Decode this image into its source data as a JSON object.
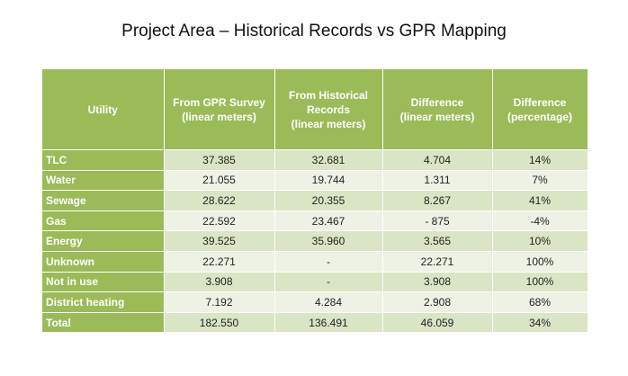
{
  "title": "Project  Area – Historical Records vs GPR Mapping",
  "table": {
    "header": [
      [
        "Utility"
      ],
      [
        "From GPR Survey",
        "(linear meters)"
      ],
      [
        "From Historical",
        "Records",
        "(linear meters)"
      ],
      [
        "Difference",
        "(linear meters)"
      ],
      [
        "Difference",
        "(percentage)"
      ]
    ],
    "rows": [
      [
        "TLC",
        "37.385",
        "32.681",
        "4.704",
        "14%"
      ],
      [
        "Water",
        "21.055",
        "19.744",
        "1.311",
        "7%"
      ],
      [
        "Sewage",
        "28.622",
        "20.355",
        "8.267",
        "41%"
      ],
      [
        "Gas",
        "22.592",
        "23.467",
        "- 875",
        "-4%"
      ],
      [
        "Energy",
        "39.525",
        "35.960",
        "3.565",
        "10%"
      ],
      [
        "Unknown",
        "22.271",
        "-",
        "22.271",
        "100%"
      ],
      [
        "Not in use",
        "3.908",
        "-",
        "3.908",
        "100%"
      ],
      [
        "District heating",
        "7.192",
        "4.284",
        "2.908",
        "68%"
      ],
      [
        "Total",
        "182.550",
        "136.491",
        "46.059",
        "34%"
      ]
    ]
  }
}
